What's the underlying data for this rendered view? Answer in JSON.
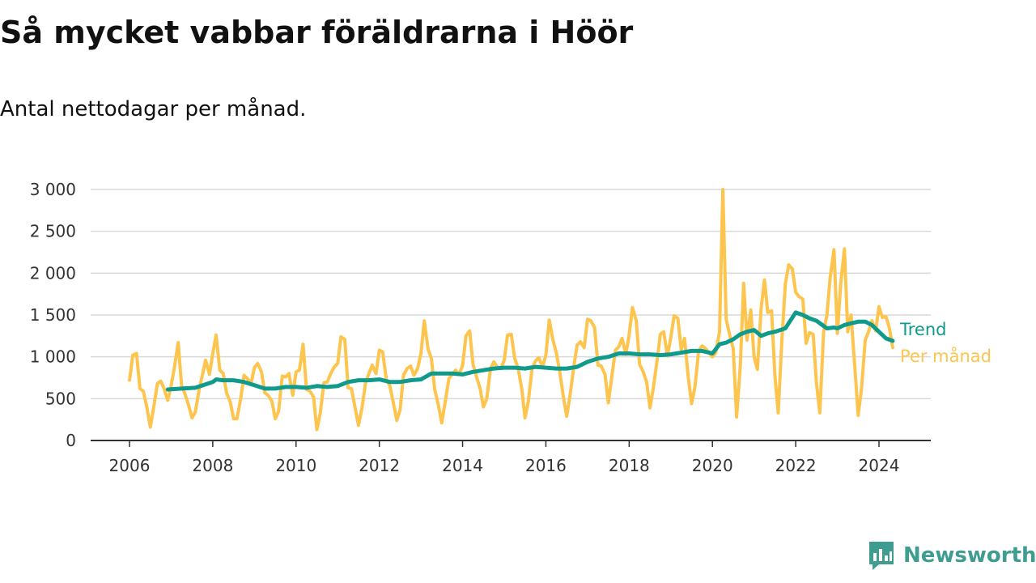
{
  "header": {
    "title": "Så mycket vabbar föräldrarna i Höör",
    "subtitle": "Antal nettodagar per månad."
  },
  "brand": {
    "name": "Newsworthy",
    "icon": "bar-chart-speech-bubble-icon",
    "color": "#3f9c91"
  },
  "chart_data": {
    "type": "line",
    "title": "Så mycket vabbar föräldrarna i Höör",
    "subtitle": "Antal nettodagar per månad.",
    "xlabel": "",
    "ylabel": "",
    "xlim": [
      2006,
      2024.45
    ],
    "ylim": [
      0,
      3000
    ],
    "y_ticks": [
      0,
      500,
      1000,
      1500,
      2000,
      2500,
      3000
    ],
    "y_tick_labels": [
      "0",
      "500",
      "1 000",
      "1 500",
      "2 000",
      "2 500",
      "3 000"
    ],
    "x_ticks": [
      2006,
      2008,
      2010,
      2012,
      2014,
      2016,
      2018,
      2020,
      2022,
      2024
    ],
    "x_tick_labels": [
      "2006",
      "2008",
      "2010",
      "2012",
      "2014",
      "2016",
      "2018",
      "2020",
      "2022",
      "2024"
    ],
    "grid": true,
    "legend": "inline-right",
    "series": [
      {
        "name": "Per månad",
        "color": "#fdc54d",
        "x": [
          2006.0,
          2006.08,
          2006.17,
          2006.25,
          2006.33,
          2006.42,
          2006.5,
          2006.58,
          2006.67,
          2006.75,
          2006.83,
          2006.92,
          2007.0,
          2007.08,
          2007.17,
          2007.25,
          2007.33,
          2007.42,
          2007.5,
          2007.58,
          2007.67,
          2007.75,
          2007.83,
          2007.92,
          2008.0,
          2008.08,
          2008.17,
          2008.25,
          2008.33,
          2008.42,
          2008.5,
          2008.58,
          2008.67,
          2008.75,
          2008.83,
          2008.92,
          2009.0,
          2009.08,
          2009.17,
          2009.25,
          2009.33,
          2009.42,
          2009.5,
          2009.58,
          2009.67,
          2009.75,
          2009.83,
          2009.92,
          2010.0,
          2010.08,
          2010.17,
          2010.25,
          2010.33,
          2010.42,
          2010.5,
          2010.58,
          2010.67,
          2010.75,
          2010.83,
          2010.92,
          2011.0,
          2011.08,
          2011.17,
          2011.25,
          2011.33,
          2011.42,
          2011.5,
          2011.58,
          2011.67,
          2011.75,
          2011.83,
          2011.92,
          2012.0,
          2012.08,
          2012.17,
          2012.25,
          2012.33,
          2012.42,
          2012.5,
          2012.58,
          2012.67,
          2012.75,
          2012.83,
          2012.92,
          2013.0,
          2013.08,
          2013.17,
          2013.25,
          2013.33,
          2013.42,
          2013.5,
          2013.58,
          2013.67,
          2013.75,
          2013.83,
          2013.92,
          2014.0,
          2014.08,
          2014.17,
          2014.25,
          2014.33,
          2014.42,
          2014.5,
          2014.58,
          2014.67,
          2014.75,
          2014.83,
          2014.92,
          2015.0,
          2015.08,
          2015.17,
          2015.25,
          2015.33,
          2015.42,
          2015.5,
          2015.58,
          2015.67,
          2015.75,
          2015.83,
          2015.92,
          2016.0,
          2016.08,
          2016.17,
          2016.25,
          2016.33,
          2016.42,
          2016.5,
          2016.58,
          2016.67,
          2016.75,
          2016.83,
          2016.92,
          2017.0,
          2017.08,
          2017.17,
          2017.25,
          2017.33,
          2017.42,
          2017.5,
          2017.58,
          2017.67,
          2017.75,
          2017.83,
          2017.92,
          2018.0,
          2018.08,
          2018.17,
          2018.25,
          2018.33,
          2018.42,
          2018.5,
          2018.58,
          2018.67,
          2018.75,
          2018.83,
          2018.92,
          2019.0,
          2019.08,
          2019.17,
          2019.25,
          2019.33,
          2019.42,
          2019.5,
          2019.58,
          2019.67,
          2019.75,
          2019.83,
          2019.92,
          2020.0,
          2020.08,
          2020.17,
          2020.25,
          2020.33,
          2020.42,
          2020.5,
          2020.58,
          2020.67,
          2020.75,
          2020.83,
          2020.92,
          2021.0,
          2021.08,
          2021.17,
          2021.25,
          2021.33,
          2021.42,
          2021.5,
          2021.58,
          2021.67,
          2021.75,
          2021.83,
          2021.92,
          2022.0,
          2022.08,
          2022.17,
          2022.25,
          2022.33,
          2022.42,
          2022.5,
          2022.58,
          2022.67,
          2022.75,
          2022.83,
          2022.92,
          2023.0,
          2023.08,
          2023.17,
          2023.25,
          2023.33,
          2023.42,
          2023.5,
          2023.58,
          2023.67,
          2023.75,
          2023.83,
          2023.92,
          2024.0,
          2024.08,
          2024.17,
          2024.25,
          2024.33
        ],
        "values": [
          720,
          1020,
          1040,
          620,
          590,
          390,
          160,
          390,
          680,
          710,
          620,
          480,
          650,
          880,
          1170,
          660,
          560,
          420,
          270,
          340,
          600,
          780,
          960,
          790,
          1040,
          1260,
          840,
          800,
          570,
          460,
          260,
          260,
          500,
          780,
          740,
          680,
          870,
          920,
          820,
          570,
          540,
          470,
          260,
          350,
          770,
          760,
          800,
          540,
          820,
          840,
          1150,
          610,
          590,
          520,
          130,
          320,
          690,
          700,
          800,
          880,
          920,
          1240,
          1210,
          630,
          620,
          390,
          180,
          380,
          690,
          800,
          900,
          800,
          1080,
          1060,
          720,
          660,
          470,
          240,
          370,
          780,
          860,
          890,
          780,
          860,
          1040,
          1430,
          1090,
          980,
          610,
          420,
          210,
          450,
          740,
          790,
          840,
          790,
          900,
          1250,
          1310,
          910,
          770,
          620,
          400,
          500,
          860,
          940,
          880,
          860,
          960,
          1260,
          1270,
          980,
          870,
          620,
          270,
          470,
          870,
          950,
          990,
          880,
          1020,
          1440,
          1200,
          1050,
          830,
          520,
          290,
          540,
          880,
          1140,
          1180,
          1110,
          1450,
          1430,
          1350,
          900,
          890,
          790,
          450,
          750,
          1080,
          1120,
          1220,
          1030,
          1260,
          1590,
          1430,
          910,
          830,
          700,
          390,
          630,
          950,
          1270,
          1300,
          1010,
          1230,
          1490,
          1460,
          1090,
          1220,
          750,
          440,
          640,
          1070,
          1130,
          1100,
          1050,
          1000,
          1050,
          1300,
          3000,
          1450,
          1250,
          1100,
          280,
          900,
          1880,
          1200,
          1560,
          1000,
          850,
          1580,
          1920,
          1530,
          1550,
          780,
          330,
          1210,
          1870,
          2100,
          2050,
          1770,
          1720,
          1690,
          1160,
          1290,
          1270,
          680,
          330,
          1300,
          1500,
          1960,
          2280,
          1280,
          1870,
          2290,
          1300,
          1500,
          870,
          300,
          620,
          1200,
          1300,
          1430,
          1310,
          1600,
          1470,
          1480,
          1340,
          1110
        ]
      },
      {
        "name": "Trend",
        "color": "#0f9a8c",
        "x": [
          2006.92,
          2007.25,
          2007.58,
          2008.0,
          2008.08,
          2008.25,
          2008.5,
          2008.75,
          2009.0,
          2009.25,
          2009.5,
          2009.75,
          2010.0,
          2010.25,
          2010.5,
          2010.75,
          2011.0,
          2011.25,
          2011.5,
          2011.75,
          2012.0,
          2012.25,
          2012.5,
          2012.75,
          2013.0,
          2013.25,
          2013.5,
          2013.75,
          2014.0,
          2014.25,
          2014.5,
          2014.75,
          2015.0,
          2015.25,
          2015.5,
          2015.75,
          2016.0,
          2016.25,
          2016.5,
          2016.75,
          2017.0,
          2017.25,
          2017.5,
          2017.75,
          2018.0,
          2018.25,
          2018.5,
          2018.75,
          2019.0,
          2019.25,
          2019.5,
          2019.75,
          2020.0,
          2020.17,
          2020.33,
          2020.5,
          2020.67,
          2020.83,
          2021.0,
          2021.17,
          2021.33,
          2021.5,
          2021.75,
          2022.0,
          2022.17,
          2022.33,
          2022.5,
          2022.75,
          2022.92,
          2023.0,
          2023.17,
          2023.33,
          2023.5,
          2023.67,
          2023.83,
          2024.0,
          2024.17,
          2024.33
        ],
        "values": [
          610,
          620,
          630,
          700,
          730,
          720,
          720,
          700,
          660,
          620,
          620,
          640,
          640,
          630,
          650,
          640,
          650,
          700,
          720,
          720,
          730,
          700,
          700,
          720,
          730,
          800,
          800,
          800,
          790,
          820,
          840,
          860,
          870,
          870,
          860,
          880,
          870,
          860,
          860,
          880,
          940,
          980,
          1000,
          1040,
          1040,
          1030,
          1030,
          1020,
          1030,
          1050,
          1070,
          1070,
          1040,
          1150,
          1170,
          1210,
          1270,
          1300,
          1320,
          1250,
          1280,
          1300,
          1340,
          1530,
          1500,
          1460,
          1430,
          1340,
          1350,
          1340,
          1380,
          1400,
          1420,
          1420,
          1380,
          1300,
          1220,
          1190
        ]
      }
    ]
  }
}
